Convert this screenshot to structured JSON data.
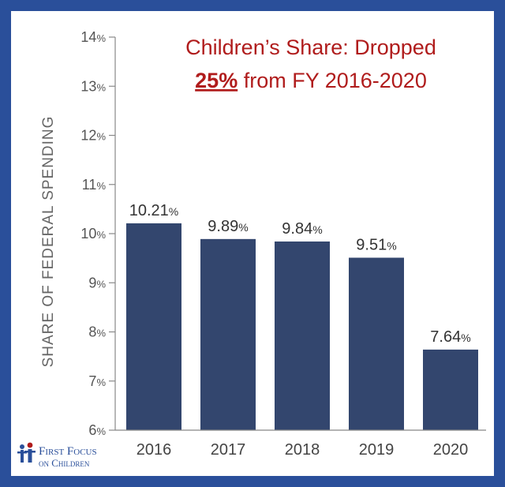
{
  "chart_data": {
    "type": "bar",
    "title_line1": "Children’s Share: Dropped",
    "title_highlight": "25%",
    "title_line2_rest": " from FY 2016-2020",
    "ylabel": "SHARE OF FEDERAL SPENDING",
    "xlabel": "",
    "categories": [
      "2016",
      "2017",
      "2018",
      "2019",
      "2020"
    ],
    "values": [
      10.21,
      9.89,
      9.84,
      9.51,
      7.64
    ],
    "value_labels": [
      "10.21",
      "9.89",
      "9.84",
      "9.51",
      "7.64"
    ],
    "ylim": [
      6,
      14
    ],
    "yticks": [
      6,
      7,
      8,
      9,
      10,
      11,
      12,
      13,
      14
    ],
    "tick_suffix": "%",
    "bar_color": "#33466e",
    "grid": false
  },
  "logo": {
    "line1": "First Focus",
    "line2": "on Children"
  },
  "colors": {
    "frame": "#2a4f9a",
    "title": "#b01c1c",
    "bar": "#33466e"
  }
}
